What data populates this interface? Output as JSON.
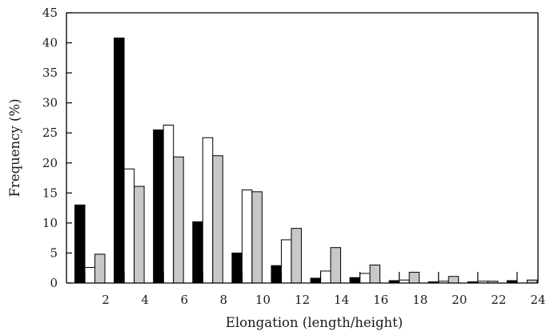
{
  "chart_data": {
    "type": "bar",
    "title": "",
    "xlabel": "Elongation (length/height)",
    "ylabel": "Frequency (%)",
    "ylim": [
      0,
      45
    ],
    "xlim": [
      0,
      24
    ],
    "bin_width": 2,
    "x_ticks": [
      "2",
      "4",
      "6",
      "8",
      "10",
      "12",
      "14",
      "16",
      "18",
      "20",
      "22",
      "24"
    ],
    "y_ticks": [
      "0",
      "5",
      "10",
      "15",
      "20",
      "25",
      "30",
      "35",
      "40",
      "45"
    ],
    "bins": [
      [
        0,
        2
      ],
      [
        2,
        4
      ],
      [
        4,
        6
      ],
      [
        6,
        8
      ],
      [
        8,
        10
      ],
      [
        10,
        12
      ],
      [
        12,
        14
      ],
      [
        14,
        16
      ],
      [
        16,
        18
      ],
      [
        18,
        20
      ],
      [
        20,
        22
      ],
      [
        22,
        24
      ]
    ],
    "series": [
      {
        "color": "#000000",
        "values": [
          13.0,
          40.8,
          25.5,
          10.2,
          5.0,
          2.9,
          0.8,
          0.9,
          0.4,
          0.2,
          0.2,
          0.4
        ]
      },
      {
        "color": "#ffffff",
        "values": [
          2.6,
          19.0,
          26.3,
          24.2,
          15.5,
          7.2,
          2.0,
          1.6,
          0.5,
          0.3,
          0.3,
          0.0
        ]
      },
      {
        "color": "#c8c8c8",
        "values": [
          4.8,
          16.1,
          21.0,
          21.2,
          15.2,
          9.1,
          5.9,
          3.0,
          1.8,
          1.1,
          0.3,
          0.5
        ]
      }
    ],
    "grid": false,
    "legend": "none"
  }
}
